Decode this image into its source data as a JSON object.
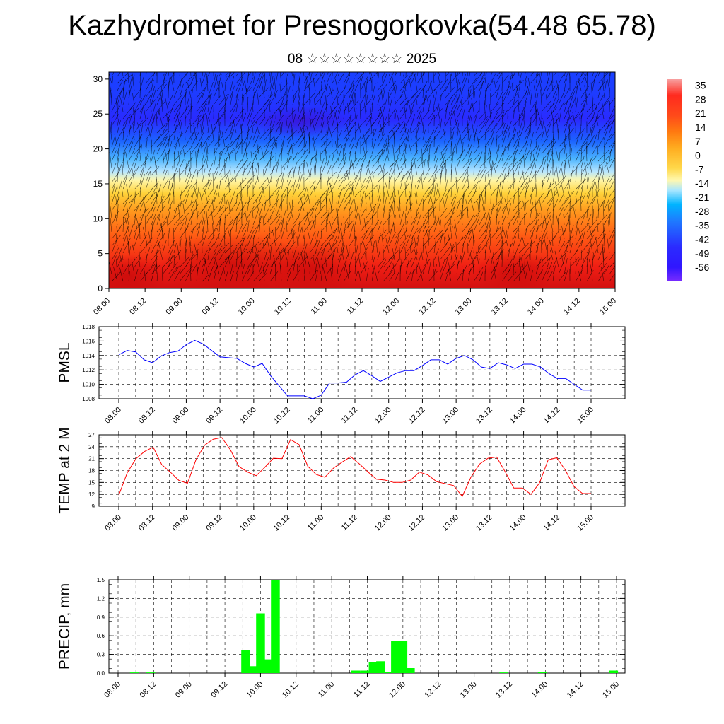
{
  "title": "Kazhydromet for Presnogorkovka(54.48 65.78)",
  "subtitle": "08 ☆☆☆☆☆☆☆☆ 2025",
  "colors": {
    "pmsl": "#0000ff",
    "temp": "#ff0000",
    "precip": "#00ff00"
  },
  "chart_data": [
    {
      "id": "cross-section",
      "type": "heatmap",
      "x_ticks": [
        "08.00",
        "08.12",
        "09.00",
        "09.12",
        "10.00",
        "10.12",
        "11.00",
        "11.12",
        "12.00",
        "12.12",
        "13.00",
        "13.12",
        "14.00",
        "14.12",
        "15.00"
      ],
      "y_ticks": [
        "0",
        "5",
        "10",
        "15",
        "20",
        "25",
        "30"
      ],
      "ylim": [
        0,
        31
      ],
      "colorbar_labels": [
        "35",
        "28",
        "21",
        "14",
        "7",
        "0",
        "-7",
        "-14",
        "-21",
        "-28",
        "-35",
        "-42",
        "-49",
        "-56"
      ],
      "colorbar_range": [
        -63,
        38
      ],
      "colorbar_stops": [
        "#7a2cff",
        "#3016ff",
        "#2b2bff",
        "#1e7bff",
        "#00b4ff",
        "#a8e6ff",
        "#fff8b0",
        "#ffd84a",
        "#ffac1f",
        "#ff7a10",
        "#ff4a1a",
        "#ff2a1e",
        "#f7a0a0"
      ],
      "wind_barbs": true
    },
    {
      "id": "pmsl",
      "type": "line",
      "ylabel": "PMSL",
      "ylim": [
        1008,
        1018
      ],
      "y_ticks": [
        "1008",
        "1010",
        "1012",
        "1014",
        "1016",
        "1018"
      ],
      "x_ticks": [
        "08.00",
        "08.12",
        "09.00",
        "09.12",
        "10.00",
        "10.12",
        "11.00",
        "11.12",
        "12.00",
        "12.12",
        "13.00",
        "13.12",
        "14.00",
        "14.12",
        "15.00"
      ],
      "series": [
        {
          "values": [
            1014.1,
            1014.7,
            1014.5,
            1013.4,
            1013.0,
            1013.9,
            1014.4,
            1014.6,
            1015.5,
            1016.1,
            1015.6,
            1014.7,
            1013.8,
            1013.7,
            1013.6,
            1012.9,
            1012.4,
            1012.9,
            1011.2,
            1009.8,
            1008.4,
            1008.4,
            1008.4,
            1008.0,
            1008.5,
            1010.2,
            1010.2,
            1010.3,
            1011.3,
            1011.9,
            1011.2,
            1010.4,
            1011.0,
            1011.6,
            1011.9,
            1011.9,
            1012.6,
            1013.4,
            1013.4,
            1012.8,
            1013.6,
            1014.0,
            1013.4,
            1012.4,
            1012.2,
            1013.0,
            1012.7,
            1012.2,
            1012.8,
            1012.8,
            1012.4,
            1011.5,
            1010.8,
            1010.8,
            1010.0,
            1009.2,
            1009.2
          ]
        }
      ]
    },
    {
      "id": "temp",
      "type": "line",
      "ylabel": "TEMP at 2 M",
      "ylim": [
        9,
        27
      ],
      "y_ticks": [
        "9",
        "12",
        "15",
        "18",
        "21",
        "24",
        "27"
      ],
      "x_ticks": [
        "08.00",
        "08.12",
        "09.00",
        "09.12",
        "10.00",
        "10.12",
        "11.00",
        "11.12",
        "12.00",
        "12.12",
        "13.00",
        "13.12",
        "14.00",
        "14.12",
        "15.00"
      ],
      "series": [
        {
          "values": [
            11.8,
            17.5,
            21.0,
            22.8,
            23.9,
            19.5,
            17.6,
            15.5,
            14.8,
            20.8,
            24.4,
            25.9,
            26.3,
            23.2,
            19.0,
            17.6,
            16.7,
            18.8,
            21.1,
            21.0,
            25.8,
            24.5,
            19.1,
            17.0,
            16.3,
            18.6,
            20.1,
            21.5,
            19.7,
            17.7,
            15.8,
            15.6,
            15.0,
            15.0,
            15.6,
            17.6,
            16.9,
            15.2,
            14.7,
            14.2,
            11.5,
            16.3,
            19.6,
            21.1,
            21.4,
            17.7,
            13.6,
            13.6,
            12.0,
            14.9,
            20.7,
            21.2,
            18.1,
            14.0,
            12.2,
            12.2
          ]
        }
      ]
    },
    {
      "id": "precip",
      "type": "bar",
      "ylabel": "PRECIP, mm",
      "ylim": [
        0,
        1.5
      ],
      "y_ticks": [
        "0.0",
        "0.3",
        "0.6",
        "0.9",
        "1.2",
        "1.5"
      ],
      "x_ticks": [
        "08.00",
        "08.12",
        "09.00",
        "09.12",
        "10.00",
        "10.12",
        "11.00",
        "11.12",
        "12.00",
        "12.12",
        "13.00",
        "13.12",
        "14.00",
        "14.12",
        "15.00"
      ],
      "bars": [
        {
          "t": 5.5,
          "v": 0.01
        },
        {
          "t": 11,
          "v": 0.01
        },
        {
          "t": 43,
          "v": 0.37
        },
        {
          "t": 45.5,
          "v": 0.11
        },
        {
          "t": 48,
          "v": 0.96
        },
        {
          "t": 50.5,
          "v": 0.22
        },
        {
          "t": 53,
          "v": 1.5
        },
        {
          "t": 80,
          "v": 0.04
        },
        {
          "t": 83,
          "v": 0.04
        },
        {
          "t": 86,
          "v": 0.17
        },
        {
          "t": 88.5,
          "v": 0.19
        },
        {
          "t": 91,
          "v": 0.02
        },
        {
          "t": 93.5,
          "v": 0.52
        },
        {
          "t": 96,
          "v": 0.52
        },
        {
          "t": 98.5,
          "v": 0.08
        },
        {
          "t": 130,
          "v": 0.01
        },
        {
          "t": 143,
          "v": 0.02
        },
        {
          "t": 167,
          "v": 0.04
        }
      ]
    }
  ]
}
